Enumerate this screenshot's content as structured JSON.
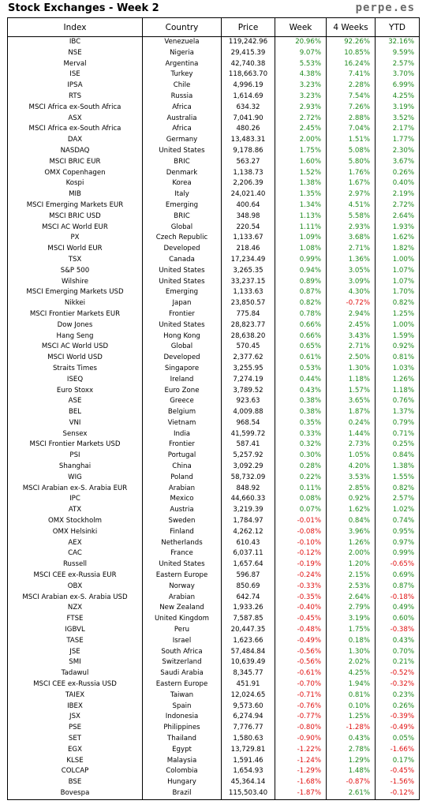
{
  "title": "Stock Exchanges - Week 2",
  "brand": "perpe.es",
  "colors": {
    "positive": "#1e8a1e",
    "negative": "#e01010"
  },
  "columns": [
    "Index",
    "Country",
    "Price",
    "Week",
    "4 Weeks",
    "YTD"
  ],
  "rows": [
    [
      "IBC",
      "Venezuela",
      "119,242.96",
      "20.96%",
      "92.26%",
      "32.16%"
    ],
    [
      "NSE",
      "Nigeria",
      "29,415.39",
      "9.07%",
      "10.85%",
      "9.59%"
    ],
    [
      "Merval",
      "Argentina",
      "42,740.38",
      "5.53%",
      "16.24%",
      "2.57%"
    ],
    [
      "ISE",
      "Turkey",
      "118,663.70",
      "4.38%",
      "7.41%",
      "3.70%"
    ],
    [
      "IPSA",
      "Chile",
      "4,996.19",
      "3.23%",
      "2.28%",
      "6.99%"
    ],
    [
      "RTS",
      "Russia",
      "1,614.69",
      "3.23%",
      "7.54%",
      "4.25%"
    ],
    [
      "MSCI Africa ex-South Africa",
      "Africa",
      "634.32",
      "2.93%",
      "7.26%",
      "3.19%"
    ],
    [
      "ASX",
      "Australia",
      "7,041.90",
      "2.72%",
      "2.88%",
      "3.52%"
    ],
    [
      "MSCI Africa ex-South Africa",
      "Africa",
      "480.26",
      "2.45%",
      "7.04%",
      "2.17%"
    ],
    [
      "DAX",
      "Germany",
      "13,483.31",
      "2.00%",
      "1.51%",
      "1.77%"
    ],
    [
      "NASDAQ",
      "United States",
      "9,178.86",
      "1.75%",
      "5.08%",
      "2.30%"
    ],
    [
      "MSCI BRIC EUR",
      "BRIC",
      "563.27",
      "1.60%",
      "5.80%",
      "3.67%"
    ],
    [
      "OMX Copenhagen",
      "Denmark",
      "1,138.73",
      "1.52%",
      "1.76%",
      "0.26%"
    ],
    [
      "Kospi",
      "Korea",
      "2,206.39",
      "1.38%",
      "1.67%",
      "0.40%"
    ],
    [
      "MIB",
      "Italy",
      "24,021.40",
      "1.35%",
      "2.97%",
      "2.19%"
    ],
    [
      "MSCI Emerging Markets EUR",
      "Emerging",
      "400.64",
      "1.34%",
      "4.51%",
      "2.72%"
    ],
    [
      "MSCI BRIC USD",
      "BRIC",
      "348.98",
      "1.13%",
      "5.58%",
      "2.64%"
    ],
    [
      "MSCI AC World EUR",
      "Global",
      "220.54",
      "1.11%",
      "2.93%",
      "1.93%"
    ],
    [
      "PX",
      "Czech Republic",
      "1,133.67",
      "1.09%",
      "3.68%",
      "1.62%"
    ],
    [
      "MSCI World EUR",
      "Developed",
      "218.46",
      "1.08%",
      "2.71%",
      "1.82%"
    ],
    [
      "TSX",
      "Canada",
      "17,234.49",
      "0.99%",
      "1.36%",
      "1.00%"
    ],
    [
      "S&P 500",
      "United States",
      "3,265.35",
      "0.94%",
      "3.05%",
      "1.07%"
    ],
    [
      "Wilshire",
      "United States",
      "33,237.15",
      "0.89%",
      "3.09%",
      "1.07%"
    ],
    [
      "MSCI Emerging Markets USD",
      "Emerging",
      "1,133.63",
      "0.87%",
      "4.30%",
      "1.70%"
    ],
    [
      "Nikkei",
      "Japan",
      "23,850.57",
      "0.82%",
      "-0.72%",
      "0.82%"
    ],
    [
      "MSCI Frontier Markets EUR",
      "Frontier",
      "775.84",
      "0.78%",
      "2.94%",
      "1.25%"
    ],
    [
      "Dow Jones",
      "United States",
      "28,823.77",
      "0.66%",
      "2.45%",
      "1.00%"
    ],
    [
      "Hang Seng",
      "Hong Kong",
      "28,638.20",
      "0.66%",
      "3.43%",
      "1.59%"
    ],
    [
      "MSCI AC World USD",
      "Global",
      "570.45",
      "0.65%",
      "2.71%",
      "0.92%"
    ],
    [
      "MSCI World USD",
      "Developed",
      "2,377.62",
      "0.61%",
      "2.50%",
      "0.81%"
    ],
    [
      "Straits Times",
      "Singapore",
      "3,255.95",
      "0.53%",
      "1.30%",
      "1.03%"
    ],
    [
      "ISEQ",
      "Ireland",
      "7,274.19",
      "0.44%",
      "1.18%",
      "1.26%"
    ],
    [
      "Euro Stoxx",
      "Euro Zone",
      "3,789.52",
      "0.43%",
      "1.57%",
      "1.18%"
    ],
    [
      "ASE",
      "Greece",
      "923.63",
      "0.38%",
      "3.65%",
      "0.76%"
    ],
    [
      "BEL",
      "Belgium",
      "4,009.88",
      "0.38%",
      "1.87%",
      "1.37%"
    ],
    [
      "VNI",
      "Vietnam",
      "968.54",
      "0.35%",
      "0.24%",
      "0.79%"
    ],
    [
      "Sensex",
      "India",
      "41,599.72",
      "0.33%",
      "1.44%",
      "0.71%"
    ],
    [
      "MSCI Frontier Markets USD",
      "Frontier",
      "587.41",
      "0.32%",
      "2.73%",
      "0.25%"
    ],
    [
      "PSI",
      "Portugal",
      "5,257.92",
      "0.30%",
      "1.05%",
      "0.84%"
    ],
    [
      "Shanghai",
      "China",
      "3,092.29",
      "0.28%",
      "4.20%",
      "1.38%"
    ],
    [
      "WIG",
      "Poland",
      "58,732.09",
      "0.22%",
      "3.53%",
      "1.55%"
    ],
    [
      "MSCI Arabian ex-S. Arabia EUR",
      "Arabian",
      "848.92",
      "0.11%",
      "2.85%",
      "0.82%"
    ],
    [
      "IPC",
      "Mexico",
      "44,660.33",
      "0.08%",
      "0.92%",
      "2.57%"
    ],
    [
      "ATX",
      "Austria",
      "3,219.39",
      "0.07%",
      "1.62%",
      "1.02%"
    ],
    [
      "OMX Stockholm",
      "Sweden",
      "1,784.97",
      "-0.01%",
      "0.84%",
      "0.74%"
    ],
    [
      "OMX Helsinki",
      "Finland",
      "4,262.12",
      "-0.08%",
      "3.96%",
      "0.95%"
    ],
    [
      "AEX",
      "Netherlands",
      "610.43",
      "-0.10%",
      "1.26%",
      "0.97%"
    ],
    [
      "CAC",
      "France",
      "6,037.11",
      "-0.12%",
      "2.00%",
      "0.99%"
    ],
    [
      "Russell",
      "United States",
      "1,657.64",
      "-0.19%",
      "1.20%",
      "-0.65%"
    ],
    [
      "MSCI CEE ex-Russia EUR",
      "Eastern Europe",
      "596.87",
      "-0.24%",
      "2.15%",
      "0.69%"
    ],
    [
      "OBX",
      "Norway",
      "850.69",
      "-0.33%",
      "2.53%",
      "0.87%"
    ],
    [
      "MSCI Arabian ex-S. Arabia USD",
      "Arabian",
      "642.74",
      "-0.35%",
      "2.64%",
      "-0.18%"
    ],
    [
      "NZX",
      "New Zealand",
      "1,933.26",
      "-0.40%",
      "2.79%",
      "0.49%"
    ],
    [
      "FTSE",
      "United Kingdom",
      "7,587.85",
      "-0.45%",
      "3.19%",
      "0.60%"
    ],
    [
      "IGBVL",
      "Peru",
      "20,447.35",
      "-0.48%",
      "1.75%",
      "-0.38%"
    ],
    [
      "TASE",
      "Israel",
      "1,623.66",
      "-0.49%",
      "0.18%",
      "0.43%"
    ],
    [
      "JSE",
      "South Africa",
      "57,484.84",
      "-0.56%",
      "1.30%",
      "0.70%"
    ],
    [
      "SMI",
      "Switzerland",
      "10,639.49",
      "-0.56%",
      "2.02%",
      "0.21%"
    ],
    [
      "Tadawul",
      "Saudi Arabia",
      "8,345.77",
      "-0.61%",
      "4.25%",
      "-0.52%"
    ],
    [
      "MSCI CEE ex-Russia USD",
      "Eastern Europe",
      "451.91",
      "-0.70%",
      "1.94%",
      "-0.32%"
    ],
    [
      "TAIEX",
      "Taiwan",
      "12,024.65",
      "-0.71%",
      "0.81%",
      "0.23%"
    ],
    [
      "IBEX",
      "Spain",
      "9,573.60",
      "-0.76%",
      "0.10%",
      "0.26%"
    ],
    [
      "JSX",
      "Indonesia",
      "6,274.94",
      "-0.77%",
      "1.25%",
      "-0.39%"
    ],
    [
      "PSE",
      "Philippines",
      "7,776.77",
      "-0.80%",
      "-1.28%",
      "-0.49%"
    ],
    [
      "SET",
      "Thailand",
      "1,580.63",
      "-0.90%",
      "0.43%",
      "0.05%"
    ],
    [
      "EGX",
      "Egypt",
      "13,729.81",
      "-1.22%",
      "2.78%",
      "-1.66%"
    ],
    [
      "KLSE",
      "Malaysia",
      "1,591.46",
      "-1.24%",
      "1.29%",
      "0.17%"
    ],
    [
      "COLCAP",
      "Colombia",
      "1,654.93",
      "-1.29%",
      "1.48%",
      "-0.45%"
    ],
    [
      "BSE",
      "Hungary",
      "45,364.14",
      "-1.68%",
      "-0.87%",
      "-1.56%"
    ],
    [
      "Bovespa",
      "Brazil",
      "115,503.40",
      "-1.87%",
      "2.61%",
      "-0.12%"
    ]
  ]
}
